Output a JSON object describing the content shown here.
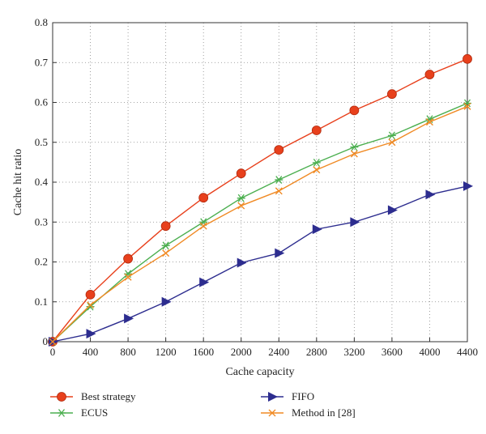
{
  "chart_data": {
    "type": "line",
    "title": "",
    "xlabel": "Cache capacity",
    "ylabel": "Cache hit ratio",
    "x": [
      0,
      400,
      800,
      1200,
      1600,
      2000,
      2400,
      2800,
      3200,
      3600,
      4000,
      4400
    ],
    "xticks": [
      0,
      400,
      800,
      1200,
      1600,
      2000,
      2400,
      2800,
      3200,
      3600,
      4000,
      4400
    ],
    "yticks": [
      0,
      0.1,
      0.2,
      0.3,
      0.4,
      0.5,
      0.6,
      0.7,
      0.8
    ],
    "xlim": [
      0,
      4400
    ],
    "ylim": [
      0,
      0.8
    ],
    "grid": "dotted",
    "legend_position": "bottom",
    "series": [
      {
        "name": "Best strategy",
        "color": "#e8401c",
        "marker": "circle",
        "values": [
          0,
          0.118,
          0.208,
          0.29,
          0.361,
          0.422,
          0.481,
          0.53,
          0.58,
          0.621,
          0.67,
          0.709
        ]
      },
      {
        "name": "ECUS",
        "color": "#4caf50",
        "marker": "asterisk",
        "values": [
          0,
          0.088,
          0.17,
          0.241,
          0.3,
          0.36,
          0.406,
          0.449,
          0.488,
          0.517,
          0.558,
          0.598
        ]
      },
      {
        "name": "FIFO",
        "color": "#2d2d8f",
        "marker": "triangle-right",
        "values": [
          0,
          0.02,
          0.058,
          0.1,
          0.149,
          0.198,
          0.222,
          0.282,
          0.3,
          0.33,
          0.369,
          0.39
        ]
      },
      {
        "name": "Method in [28]",
        "color": "#f08a24",
        "marker": "x",
        "values": [
          0,
          0.092,
          0.162,
          0.222,
          0.29,
          0.341,
          0.378,
          0.431,
          0.471,
          0.5,
          0.551,
          0.59
        ]
      }
    ]
  }
}
